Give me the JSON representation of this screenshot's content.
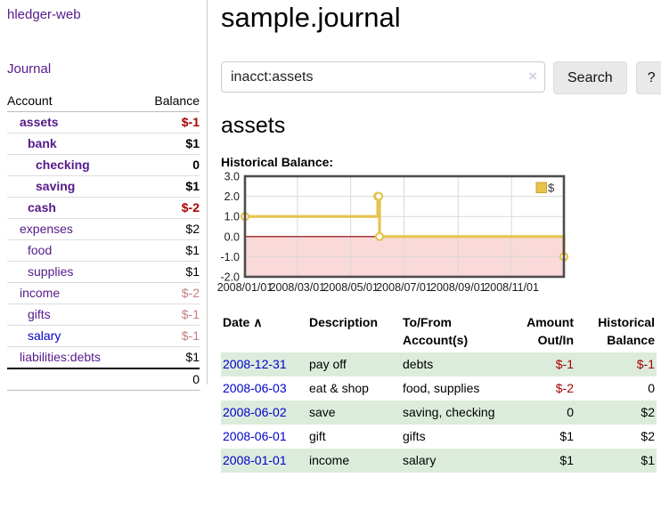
{
  "app": {
    "brand": "hledger-web"
  },
  "sidebar": {
    "journal_link": "Journal",
    "account_header": "Account",
    "balance_header": "Balance",
    "rows": [
      {
        "account": "assets",
        "balance": "$-1",
        "level": 0,
        "matched": true,
        "link_visited": true
      },
      {
        "account": "bank",
        "balance": "$1",
        "level": 1,
        "matched": true,
        "link_visited": true
      },
      {
        "account": "checking",
        "balance": "0",
        "level": 2,
        "matched": true,
        "link_visited": true
      },
      {
        "account": "saving",
        "balance": "$1",
        "level": 2,
        "matched": true,
        "link_visited": true
      },
      {
        "account": "cash",
        "balance": "$-2",
        "level": 1,
        "matched": true,
        "link_visited": true
      },
      {
        "account": "expenses",
        "balance": "$2",
        "level": 0,
        "matched": false,
        "link_visited": true
      },
      {
        "account": "food",
        "balance": "$1",
        "level": 1,
        "matched": false,
        "link_visited": true
      },
      {
        "account": "supplies",
        "balance": "$1",
        "level": 1,
        "matched": false,
        "link_visited": true
      },
      {
        "account": "income",
        "balance": "$-2",
        "level": 0,
        "matched": false,
        "link_visited": true
      },
      {
        "account": "gifts",
        "balance": "$-1",
        "level": 1,
        "matched": false,
        "link_visited": true
      },
      {
        "account": "salary",
        "balance": "$-1",
        "level": 1,
        "matched": false,
        "link_visited": false
      },
      {
        "account": "liabilities:debts",
        "balance": "$1",
        "level": 0,
        "matched": false,
        "link_visited": true
      }
    ],
    "total": "0"
  },
  "main": {
    "title": "sample.journal",
    "search": {
      "value": "inacct:assets",
      "clear_icon": "×",
      "button": "Search",
      "help": "?"
    },
    "account_heading": "assets",
    "section_label": "Historical Balance:"
  },
  "chart_data": {
    "type": "line",
    "step": true,
    "title": "Historical Balance:",
    "x_range": [
      "2008-01-01",
      "2008-12-31"
    ],
    "x_ticks": [
      {
        "date": "2008-01-01",
        "label": "2008/01/01"
      },
      {
        "date": "2008-03-01",
        "label": "2008/03/01"
      },
      {
        "date": "2008-05-01",
        "label": "2008/05/01"
      },
      {
        "date": "2008-07-01",
        "label": "2008/07/01"
      },
      {
        "date": "2008-09-01",
        "label": "2008/09/01"
      },
      {
        "date": "2008-11-01",
        "label": "2008/11/01"
      }
    ],
    "ylim": [
      -2,
      3
    ],
    "y_ticks": [
      "3.0",
      "2.0",
      "1.0",
      "0.0",
      "-1.0",
      "-2.0"
    ],
    "grid": true,
    "legend": {
      "label": "$",
      "position": "top-right"
    },
    "series": [
      {
        "name": "$",
        "color": "#e7c34c",
        "points": [
          {
            "x": "2008-01-01",
            "y": 1
          },
          {
            "x": "2008-06-01",
            "y": 2
          },
          {
            "x": "2008-06-02",
            "y": 2
          },
          {
            "x": "2008-06-03",
            "y": 0
          },
          {
            "x": "2008-12-31",
            "y": -1
          }
        ]
      }
    ],
    "negative_region_fill": "#f9d9d9",
    "zero_line_color": "#8b0000"
  },
  "register": {
    "headers": [
      {
        "label": "Date",
        "sort_icon": "∧",
        "align": "left"
      },
      {
        "label": "Description",
        "align": "left"
      },
      {
        "label": "To/From Account(s)",
        "align": "left"
      },
      {
        "label": "Amount Out/In",
        "align": "right"
      },
      {
        "label": "Historical Balance",
        "align": "right"
      }
    ],
    "rows": [
      {
        "date": "2008-12-31",
        "description": "pay off",
        "accounts": "debts",
        "amount": "$-1",
        "balance": "$-1"
      },
      {
        "date": "2008-06-03",
        "description": "eat & shop",
        "accounts": "food, supplies",
        "amount": "$-2",
        "balance": "0"
      },
      {
        "date": "2008-06-02",
        "description": "save",
        "accounts": "saving, checking",
        "amount": "0",
        "balance": "$2"
      },
      {
        "date": "2008-06-01",
        "description": "gift",
        "accounts": "gifts",
        "amount": "$1",
        "balance": "$2"
      },
      {
        "date": "2008-01-01",
        "description": "income",
        "accounts": "salary",
        "amount": "$1",
        "balance": "$1"
      }
    ]
  },
  "colors": {
    "accent_purple": "#551a8b",
    "link_blue": "#0000cc",
    "negative": "#a40000",
    "negative_dim": "#c47f7f",
    "row_green": "#dcecdc",
    "chart_gold": "#e7c34c",
    "chart_border": "#4d4d4d",
    "gridline": "#d9d9d9",
    "negative_fill": "#f9d9d9",
    "zero_line": "#8b0000"
  }
}
